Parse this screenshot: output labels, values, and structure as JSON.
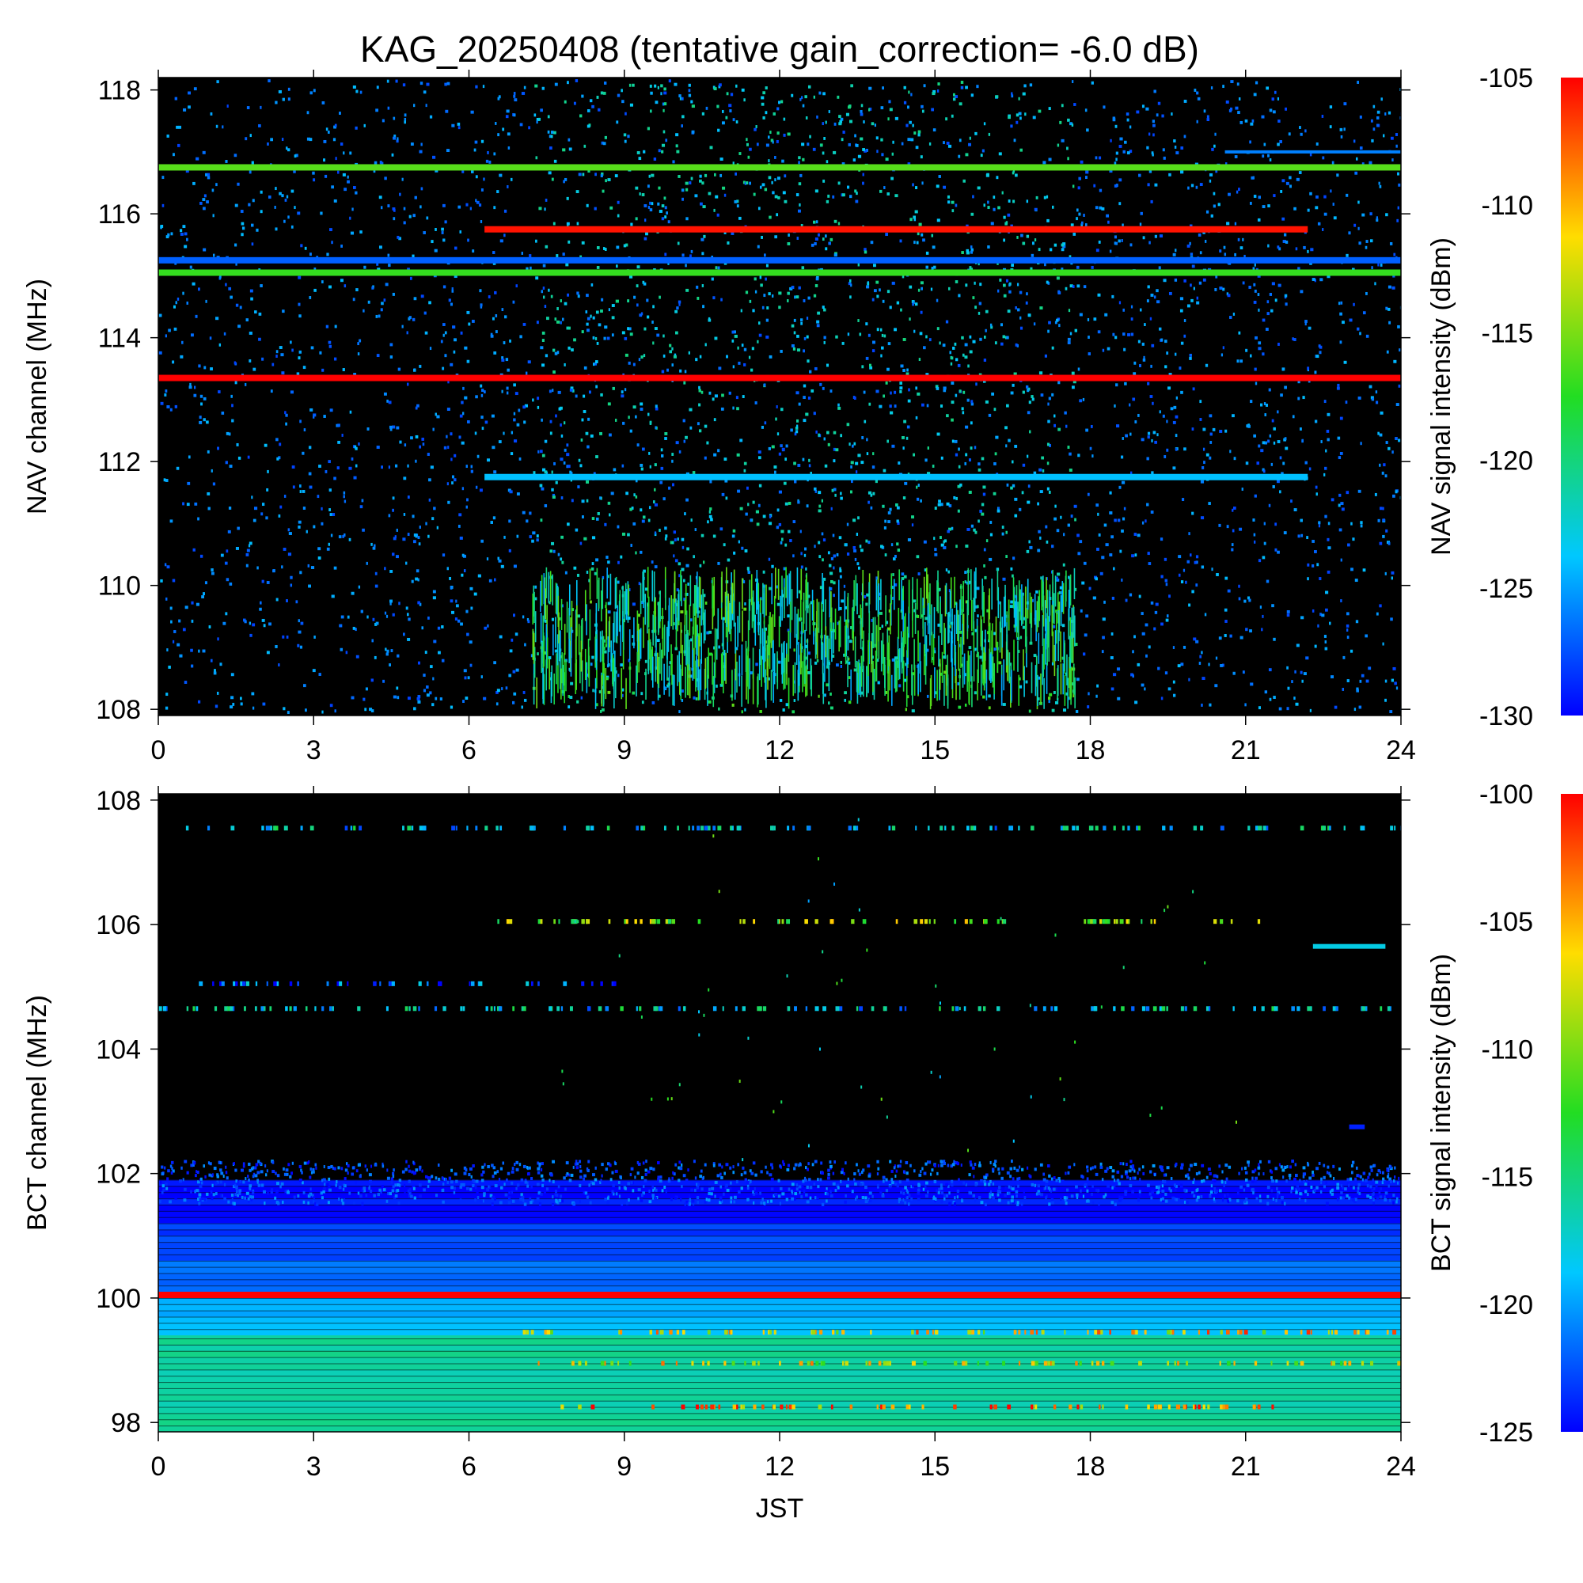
{
  "title": "KAG_20250408 (tentative gain_correction= -6.0 dB)",
  "chart_data": [
    {
      "type": "heatmap",
      "name": "NAV",
      "ylabel": "NAV channel (MHz)",
      "colorbar_label": "NAV signal intensity (dBm)",
      "xlim": [
        0,
        24
      ],
      "ylim": [
        107.9,
        118.2
      ],
      "xticks": [
        0,
        3,
        6,
        9,
        12,
        15,
        18,
        21,
        24
      ],
      "xtick_labels": [
        "0",
        "3",
        "6",
        "9",
        "12",
        "15",
        "18",
        "21",
        "24"
      ],
      "yticks": [
        108,
        110,
        112,
        114,
        116,
        118
      ],
      "ytick_labels": [
        "108",
        "110",
        "112",
        "114",
        "116",
        "118"
      ],
      "color_range": [
        -130,
        -105
      ],
      "colorbar_ticks": [
        -105,
        -110,
        -115,
        -120,
        -125,
        -130
      ],
      "colorbar_tick_labels": [
        "-105",
        "-110",
        "-115",
        "-120",
        "-125",
        "-130"
      ],
      "noise_floor_dbm": -128,
      "activity_window_jst": [
        7.2,
        17.7
      ],
      "steady_lines": [
        {
          "freq_mhz": 116.75,
          "start": 0,
          "end": 24,
          "dbm": -116
        },
        {
          "freq_mhz": 115.75,
          "start": 6.3,
          "end": 22.2,
          "dbm": -105.5
        },
        {
          "freq_mhz": 115.25,
          "start": 0,
          "end": 24,
          "dbm": -127
        },
        {
          "freq_mhz": 115.05,
          "start": 0,
          "end": 24,
          "dbm": -117
        },
        {
          "freq_mhz": 113.35,
          "start": 0,
          "end": 24,
          "dbm": -105
        },
        {
          "freq_mhz": 111.75,
          "start": 6.3,
          "end": 22.2,
          "dbm": -124
        },
        {
          "freq_mhz": 117.0,
          "start": 20.6,
          "end": 24,
          "dbm": -126
        }
      ]
    },
    {
      "type": "heatmap",
      "name": "BCT",
      "xlabel": "JST",
      "ylabel": "BCT channel (MHz)",
      "colorbar_label": "BCT signal intensity (dBm)",
      "xlim": [
        0,
        24
      ],
      "ylim": [
        97.85,
        108.1
      ],
      "xticks": [
        0,
        3,
        6,
        9,
        12,
        15,
        18,
        21,
        24
      ],
      "xtick_labels": [
        "0",
        "3",
        "6",
        "9",
        "12",
        "15",
        "18",
        "21",
        "24"
      ],
      "yticks": [
        98,
        100,
        102,
        104,
        106,
        108
      ],
      "ytick_labels": [
        "98",
        "100",
        "102",
        "104",
        "106",
        "108"
      ],
      "color_range": [
        -125,
        -100
      ],
      "colorbar_ticks": [
        -100,
        -105,
        -110,
        -115,
        -120,
        -125
      ],
      "colorbar_tick_labels": [
        "-100",
        "-105",
        "-110",
        "-115",
        "-120",
        "-125"
      ],
      "band_profile": [
        {
          "from_mhz": 97.85,
          "to_mhz": 99.4,
          "dbm": -116
        },
        {
          "from_mhz": 99.4,
          "to_mhz": 100.0,
          "dbm": -119.5
        },
        {
          "from_mhz": 100.0,
          "to_mhz": 100.6,
          "dbm": -121.5
        },
        {
          "from_mhz": 100.6,
          "to_mhz": 101.2,
          "dbm": -123
        },
        {
          "from_mhz": 101.2,
          "to_mhz": 101.8,
          "dbm": -124.5
        }
      ],
      "steady_lines": [
        {
          "freq_mhz": 100.05,
          "start": 0,
          "end": 24,
          "dbm": -100
        }
      ],
      "intermittent_lines": [
        {
          "freq_mhz": 107.55,
          "start": 0,
          "end": 24,
          "dbm": -118
        },
        {
          "freq_mhz": 106.05,
          "start": 6.5,
          "end": 21.3,
          "dbm": -110
        },
        {
          "freq_mhz": 105.05,
          "start": 0.7,
          "end": 9.0,
          "dbm": -122
        },
        {
          "freq_mhz": 104.65,
          "start": 0,
          "end": 24,
          "dbm": -118
        },
        {
          "freq_mhz": 99.45,
          "start": 7.0,
          "end": 24,
          "dbm": -106
        },
        {
          "freq_mhz": 98.95,
          "start": 7.0,
          "end": 24,
          "dbm": -108
        },
        {
          "freq_mhz": 98.25,
          "start": 7.3,
          "end": 21.5,
          "dbm": -104
        }
      ],
      "steady_segments": [
        {
          "freq_mhz": 105.65,
          "start": 22.3,
          "end": 23.7,
          "dbm": -118
        },
        {
          "freq_mhz": 102.75,
          "start": 23.0,
          "end": 23.3,
          "dbm": -124
        }
      ]
    }
  ]
}
